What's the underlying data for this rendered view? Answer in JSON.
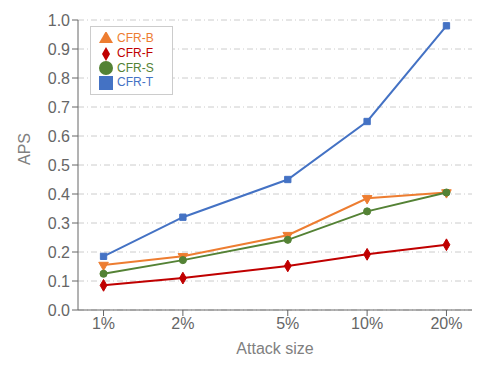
{
  "chart_data": {
    "type": "line",
    "x": [
      1,
      2,
      5,
      10,
      20
    ],
    "xlabel": "Attack size",
    "ylabel": "APS",
    "log": "x",
    "xlim": [
      0.8,
      25
    ],
    "xticks": [
      {
        "value": 1,
        "label": "1%"
      },
      {
        "value": 2,
        "label": "2%"
      },
      {
        "value": 5,
        "label": "5%"
      },
      {
        "value": 10,
        "label": "10%"
      },
      {
        "value": 20,
        "label": "20%"
      }
    ],
    "ylim": [
      0.0,
      1.0
    ],
    "yticks": [
      {
        "value": 0.0,
        "label": "0.0"
      },
      0.1,
      0.2,
      0.3,
      0.4,
      0.5,
      0.6,
      0.7,
      0.8,
      0.9,
      {
        "value": 1.0,
        "label": "1.0"
      }
    ],
    "grid": true,
    "legend": "upper left",
    "series": [
      {
        "name": "CFR-T",
        "color": "#4472c4",
        "marker": "square",
        "values": [
          0.185,
          0.32,
          0.45,
          0.65,
          0.98
        ]
      },
      {
        "name": "CFR-B",
        "color": "#ed7d31",
        "marker": "triangle-down",
        "values": [
          0.155,
          0.185,
          0.258,
          0.385,
          0.405
        ]
      },
      {
        "name": "CFR-S",
        "color": "#548235",
        "marker": "circle",
        "values": [
          0.125,
          0.172,
          0.242,
          0.34,
          0.405
        ]
      },
      {
        "name": "CFR-F",
        "color": "#c00000",
        "marker": "diamond",
        "values": [
          0.085,
          0.11,
          0.152,
          0.192,
          0.225
        ]
      }
    ]
  }
}
